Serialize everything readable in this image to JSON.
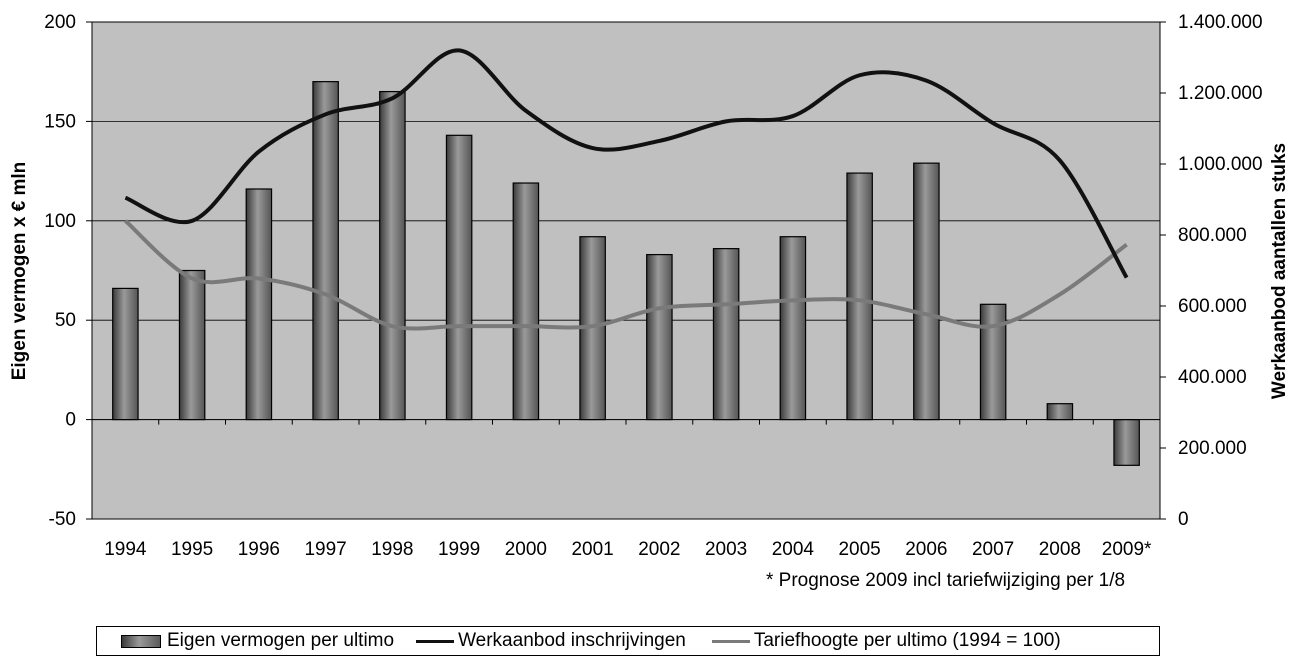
{
  "chart_data": {
    "type": "bar",
    "categories": [
      "1994",
      "1995",
      "1996",
      "1997",
      "1998",
      "1999",
      "2000",
      "2001",
      "2002",
      "2003",
      "2004",
      "2005",
      "2006",
      "2007",
      "2008",
      "2009*"
    ],
    "series": [
      {
        "name": "Eigen vermogen per ultimo",
        "type": "bar",
        "axis": "left",
        "color": "#6a6a6a",
        "values": [
          66,
          75,
          116,
          170,
          165,
          143,
          119,
          92,
          83,
          86,
          92,
          124,
          129,
          58,
          8,
          -23
        ]
      },
      {
        "name": "Werkaanbod inschrijvingen",
        "type": "line",
        "axis": "right",
        "color": "#111111",
        "values": [
          905000,
          840000,
          1035000,
          1140000,
          1185000,
          1320000,
          1150000,
          1045000,
          1065000,
          1120000,
          1135000,
          1250000,
          1235000,
          1115000,
          1010000,
          680000
        ]
      },
      {
        "name": "Tariefhoogte per ultimo (1994 = 100)",
        "type": "line",
        "axis": "left",
        "color": "#7a7a7a",
        "values": [
          100,
          71,
          71,
          63,
          47,
          47,
          47,
          47,
          56,
          58,
          60,
          60,
          53,
          47,
          63,
          88
        ]
      }
    ],
    "ylabel": "Eigen vermogen x € mln",
    "ylim": [
      -50,
      200
    ],
    "yticks": [
      "200",
      "150",
      "100",
      "50",
      "0",
      "-50"
    ],
    "y2label": "Werkaanbod aantallen stuks",
    "y2lim": [
      0,
      1400000
    ],
    "y2ticks": [
      "1.400.000",
      "1.200.000",
      "1.000.000",
      "800.000",
      "600.000",
      "400.000",
      "200.000",
      "0"
    ],
    "grid": true,
    "plot_background": "#c0c0c0",
    "legend_position": "bottom",
    "annotation": "* Prognose 2009 incl tariefwijziging per 1/8"
  }
}
